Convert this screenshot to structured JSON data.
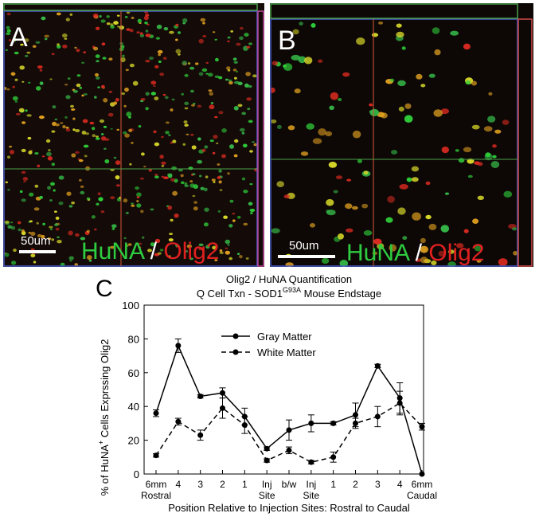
{
  "panel_a": {
    "letter": "A",
    "scale_bar": "50um",
    "stain_green": "HuNA",
    "stain_sep": "/",
    "stain_red": "Olig2"
  },
  "panel_b": {
    "letter": "B",
    "scale_bar": "50um",
    "stain_green": "HuNA",
    "stain_sep": "/",
    "stain_red": "Olig2"
  },
  "panel_c": {
    "letter": "C"
  },
  "chart_data": {
    "type": "line",
    "title": "Olig2 / HuNA Quantification",
    "subtitle_prefix": "Q Cell Txn - SOD1",
    "subtitle_superscript": "G93A",
    "subtitle_suffix": " Mouse Endstage",
    "ylabel_prefix": "% of HuNA",
    "ylabel_superscript": "+",
    "ylabel_suffix": " Cells Exprssing Olig2",
    "xlabel": "Position Relative to Injection Sites: Rostral to Caudal",
    "ylim": [
      0,
      100
    ],
    "yticks": [
      0,
      20,
      40,
      60,
      80,
      100
    ],
    "categories": [
      [
        "6mm",
        "Rostral"
      ],
      [
        "4"
      ],
      [
        "3"
      ],
      [
        "2"
      ],
      [
        "1"
      ],
      [
        "Inj",
        "Site"
      ],
      [
        "b/w"
      ],
      [
        "Inj",
        "Site"
      ],
      [
        "1"
      ],
      [
        "2"
      ],
      [
        "3"
      ],
      [
        "4"
      ],
      [
        "6mm",
        "Caudal"
      ]
    ],
    "legend_position": "top-right",
    "series": [
      {
        "name": "Gray Matter",
        "style": "solid",
        "color": "#000000",
        "values": [
          36,
          76,
          46,
          48,
          34,
          15,
          26,
          30,
          30,
          35,
          64,
          45,
          0
        ],
        "errors": [
          2,
          4,
          1,
          3,
          5,
          1,
          6,
          5,
          1,
          7,
          1,
          9,
          0
        ]
      },
      {
        "name": "White Matter",
        "style": "dashed",
        "color": "#000000",
        "values": [
          11,
          31,
          23,
          39,
          29,
          8,
          14,
          7,
          10,
          30,
          34,
          42,
          28
        ],
        "errors": [
          1,
          2,
          3,
          6,
          5,
          1,
          2,
          1,
          3,
          3,
          6,
          7,
          2
        ]
      }
    ]
  }
}
